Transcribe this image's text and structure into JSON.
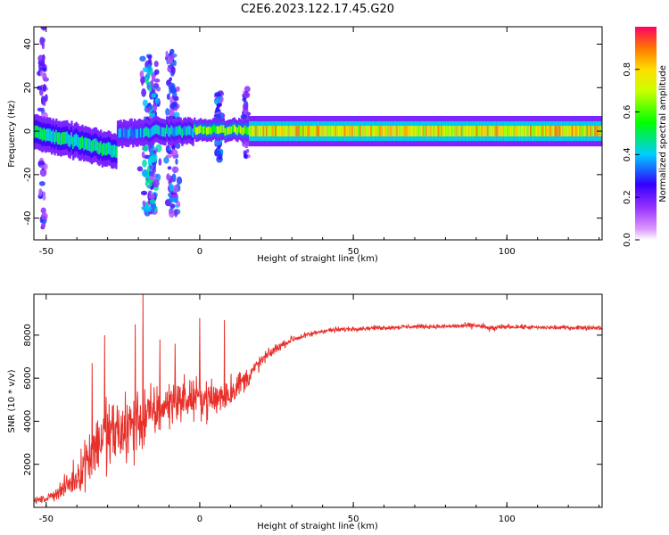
{
  "figure": {
    "title": "C2E6.2023.122.17.45.G20"
  },
  "chart_data": [
    {
      "type": "heatmap",
      "title": "C2E6.2023.122.17.45.G20",
      "xlabel": "Height of straight line (km)",
      "ylabel": "Frequency (Hz)",
      "xlim": [
        -54,
        131
      ],
      "ylim": [
        -50,
        48
      ],
      "x_ticks": [
        -50,
        0,
        50,
        100
      ],
      "y_ticks": [
        -40,
        -20,
        0,
        20,
        40
      ],
      "colorbar": {
        "label": "Normalized spectral amplitude",
        "range": [
          0,
          1
        ],
        "ticks": [
          0.0,
          0.2,
          0.4,
          0.6,
          0.8
        ],
        "colors": [
          "#ffffff",
          "#9933ff",
          "#3300ff",
          "#00ccff",
          "#00ff00",
          "#ffff00",
          "#ff7700",
          "#ff0066"
        ]
      },
      "bands": [
        {
          "x_start": -54,
          "x_end": -27,
          "center_hz": 0,
          "width_hz": 8,
          "level": 0.45,
          "slope_hz_per_km": -0.35
        },
        {
          "x_start": -27,
          "x_end": -18,
          "center_hz": -1,
          "width_hz": 6,
          "level": 0.35,
          "slope_hz_per_km": 0
        },
        {
          "x_start": -18,
          "x_end": -2,
          "center_hz": 0,
          "width_hz": 6,
          "level": 0.4,
          "slope_hz_per_km": 0
        },
        {
          "x_start": -2,
          "x_end": 16,
          "center_hz": 0.5,
          "width_hz": 5,
          "level": 0.6,
          "slope_hz_per_km": 0
        },
        {
          "x_start": 16,
          "x_end": 131,
          "center_hz": 0,
          "width_hz": 7,
          "level": 0.75,
          "slope_hz_per_km": 0
        }
      ],
      "scatter_regions": [
        {
          "x_center": -51,
          "x_half_width": 1.5,
          "y_min": -45,
          "y_max": 48,
          "level": 0.2
        },
        {
          "x_center": -16,
          "x_half_width": 4,
          "y_min": -38,
          "y_max": 35,
          "level": 0.3
        },
        {
          "x_center": -9,
          "x_half_width": 3,
          "y_min": -38,
          "y_max": 37,
          "level": 0.25
        },
        {
          "x_center": 6,
          "x_half_width": 1.5,
          "y_min": -14,
          "y_max": 18,
          "level": 0.25
        },
        {
          "x_center": 15,
          "x_half_width": 1.2,
          "y_min": -12,
          "y_max": 20,
          "level": 0.2
        }
      ]
    },
    {
      "type": "line",
      "xlabel": "Height of straight line (km)",
      "ylabel": "SNR (10 * v/v)",
      "xlim": [
        -54,
        131
      ],
      "ylim": [
        0,
        9900
      ],
      "x_ticks": [
        -50,
        0,
        50,
        100
      ],
      "y_ticks": [
        2000,
        4000,
        6000,
        8000
      ],
      "series": [
        {
          "color": "#e8302b",
          "x": [
            -54,
            -50,
            -45,
            -40,
            -36,
            -32,
            -28,
            -24,
            -20,
            -16,
            -12,
            -8,
            -4,
            0,
            4,
            8,
            12,
            16,
            20,
            25,
            30,
            35,
            40,
            45,
            50,
            60,
            70,
            80,
            90,
            95,
            100,
            110,
            120,
            131
          ],
          "y": [
            300,
            400,
            800,
            1400,
            2500,
            3200,
            3400,
            3600,
            4000,
            4300,
            4600,
            5000,
            5000,
            5100,
            5000,
            5200,
            5600,
            6100,
            6800,
            7400,
            7800,
            8000,
            8200,
            8250,
            8300,
            8350,
            8400,
            8400,
            8450,
            8300,
            8400,
            8350,
            8350,
            8350
          ],
          "noise": [
            200,
            250,
            600,
            1200,
            2000,
            2600,
            2600,
            2600,
            2500,
            2000,
            1600,
            1500,
            1500,
            1200,
            1500,
            1400,
            1000,
            700,
            500,
            300,
            250,
            200,
            200,
            180,
            150,
            150,
            150,
            150,
            200,
            250,
            150,
            150,
            150,
            150
          ],
          "peaks": [
            {
              "x": -35,
              "y": 6700
            },
            {
              "x": -31,
              "y": 8000
            },
            {
              "x": -21,
              "y": 8500
            },
            {
              "x": -18.5,
              "y": 9900
            },
            {
              "x": -13,
              "y": 7800
            },
            {
              "x": -8,
              "y": 7600
            },
            {
              "x": 0,
              "y": 8800
            },
            {
              "x": 8,
              "y": 8700
            }
          ]
        }
      ]
    }
  ]
}
